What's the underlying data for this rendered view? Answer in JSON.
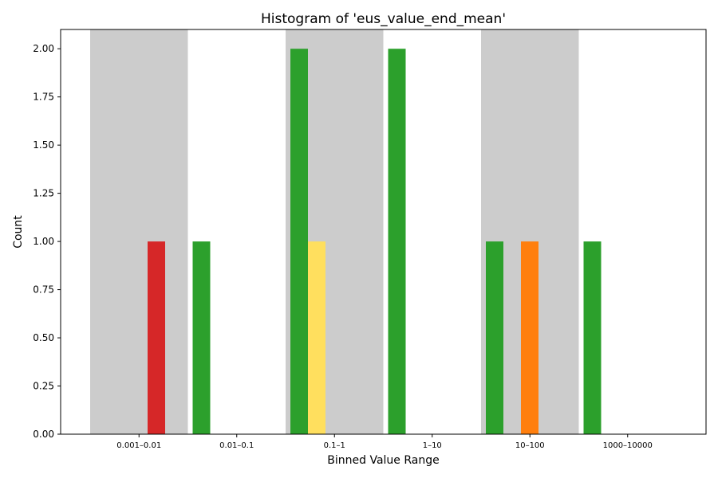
{
  "chart_data": {
    "type": "bar",
    "title": "Histogram of 'eus_value_end_mean'",
    "xlabel": "Binned Value Range",
    "ylabel": "Count",
    "categories": [
      "0.001–0.01",
      "0.01–0.1",
      "0.1–1",
      "1–10",
      "10–100",
      "1000–10000"
    ],
    "shaded_categories": [
      "0.001–0.01",
      "0.1–1",
      "10–100"
    ],
    "shade_color": "#cccccc",
    "ylim": [
      0,
      2.1
    ],
    "yticks": [
      0.0,
      0.25,
      0.5,
      0.75,
      1.0,
      1.25,
      1.5,
      1.75,
      2.0
    ],
    "ytick_labels": [
      "0.00",
      "0.25",
      "0.50",
      "0.75",
      "1.00",
      "1.25",
      "1.50",
      "1.75",
      "2.00"
    ],
    "grid": false,
    "bars": [
      {
        "category_index": 0,
        "slot": 3,
        "value": 1,
        "color": "#d62728"
      },
      {
        "category_index": 1,
        "slot": 0,
        "value": 1,
        "color": "#2ca02c"
      },
      {
        "category_index": 2,
        "slot": 0,
        "value": 2,
        "color": "#2ca02c"
      },
      {
        "category_index": 2,
        "slot": 1,
        "value": 1,
        "color": "#ffdf5e"
      },
      {
        "category_index": 3,
        "slot": 0,
        "value": 2,
        "color": "#2ca02c"
      },
      {
        "category_index": 4,
        "slot": 0,
        "value": 1,
        "color": "#2ca02c"
      },
      {
        "category_index": 4,
        "slot": 2,
        "value": 1,
        "color": "#ff7f0e"
      },
      {
        "category_index": 5,
        "slot": 0,
        "value": 1,
        "color": "#2ca02c"
      }
    ]
  }
}
